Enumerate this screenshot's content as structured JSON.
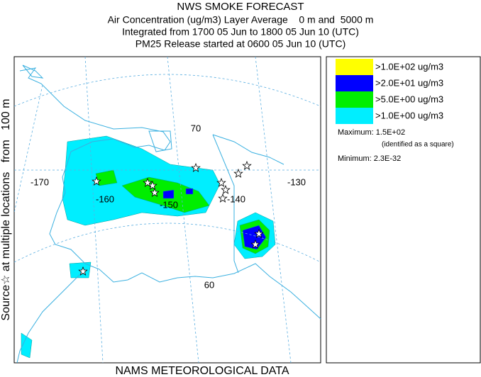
{
  "header": {
    "lines": [
      "NWS SMOKE FORECAST",
      "Air Concentration (ug/m3) Layer Average    0 m and  5000 m",
      "Integrated from 1700 05 Jun to 1800 05 Jun 10 (UTC)",
      "PM25 Release started at 0600 05 Jun 10 (UTC)"
    ]
  },
  "side_label": "Source☆ at multiple locations   from   100 m",
  "footer": "NAMS METEOROLOGICAL DATA",
  "legend": {
    "entries": [
      {
        "label": ">1.0E+02 ug/m3",
        "color": "#ffff00"
      },
      {
        "label": ">2.0E+01 ug/m3",
        "color": "#0000ff"
      },
      {
        "label": ">5.0E+00 ug/m3",
        "color": "#00ee00"
      },
      {
        "label": ">1.0E+00 ug/m3",
        "color": "#00eeff"
      }
    ],
    "maximum": "Maximum: 1.5E+02",
    "max_note": "(identified as a square)",
    "minimum": "Minimum: 2.3E-32"
  },
  "map": {
    "labels": [
      "70",
      "-170",
      "-160",
      "-150",
      "-140",
      "-130",
      "60"
    ]
  }
}
